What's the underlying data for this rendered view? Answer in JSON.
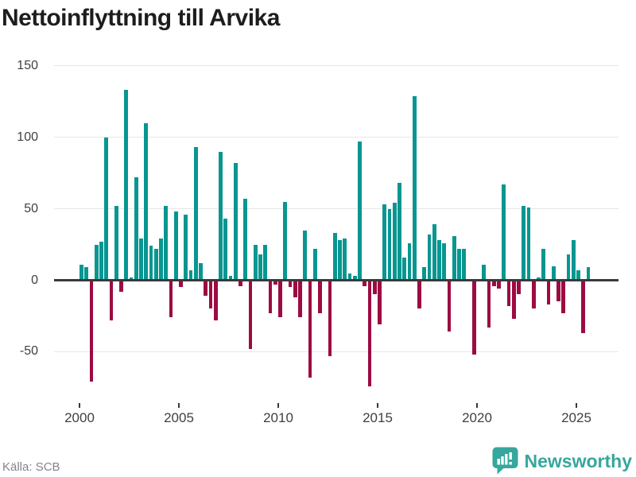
{
  "title": "Nettoinflyttning till Arvika",
  "source": "Källa: SCB",
  "brand": {
    "name": "Newsworthy",
    "icon": "bar-chart-speech-bubble-icon",
    "color": "#36a79d"
  },
  "chart_data": {
    "type": "bar",
    "title": "Nettoinflyttning till Arvika",
    "xlabel": "",
    "ylabel": "",
    "frequency": "quarterly",
    "start_period": "2000 Q1",
    "end_period": "2025 Q3",
    "values": [
      11,
      9,
      -71,
      25,
      27,
      100,
      -28,
      52,
      -8,
      133,
      2,
      72,
      29,
      110,
      24,
      22,
      29,
      52,
      -26,
      48,
      -5,
      46,
      7,
      93,
      12,
      -11,
      -20,
      -28,
      90,
      43,
      3,
      82,
      -4,
      57,
      -48,
      25,
      18,
      25,
      -23,
      -3,
      -26,
      55,
      -5,
      -12,
      -26,
      35,
      -68,
      22,
      -23,
      0,
      -53,
      33,
      28,
      29,
      5,
      3,
      97,
      -4,
      -74,
      -10,
      -31,
      53,
      50,
      54,
      68,
      16,
      26,
      129,
      -20,
      9,
      32,
      39,
      28,
      26,
      -36,
      31,
      22,
      22,
      0,
      -52,
      0,
      11,
      -33,
      -4,
      -6,
      67,
      -18,
      -27,
      -10,
      52,
      51,
      -20,
      2,
      22,
      -17,
      10,
      -15,
      -23,
      18,
      28,
      7,
      -37,
      9
    ],
    "y_ticks": [
      150,
      100,
      50,
      0,
      -50
    ],
    "x_ticks": [
      2000,
      2005,
      2010,
      2015,
      2020,
      2025
    ],
    "ylim": [
      -88,
      154
    ],
    "grid": true,
    "legend": false,
    "positive_color": "#089691",
    "negative_color": "#9d0b42"
  }
}
